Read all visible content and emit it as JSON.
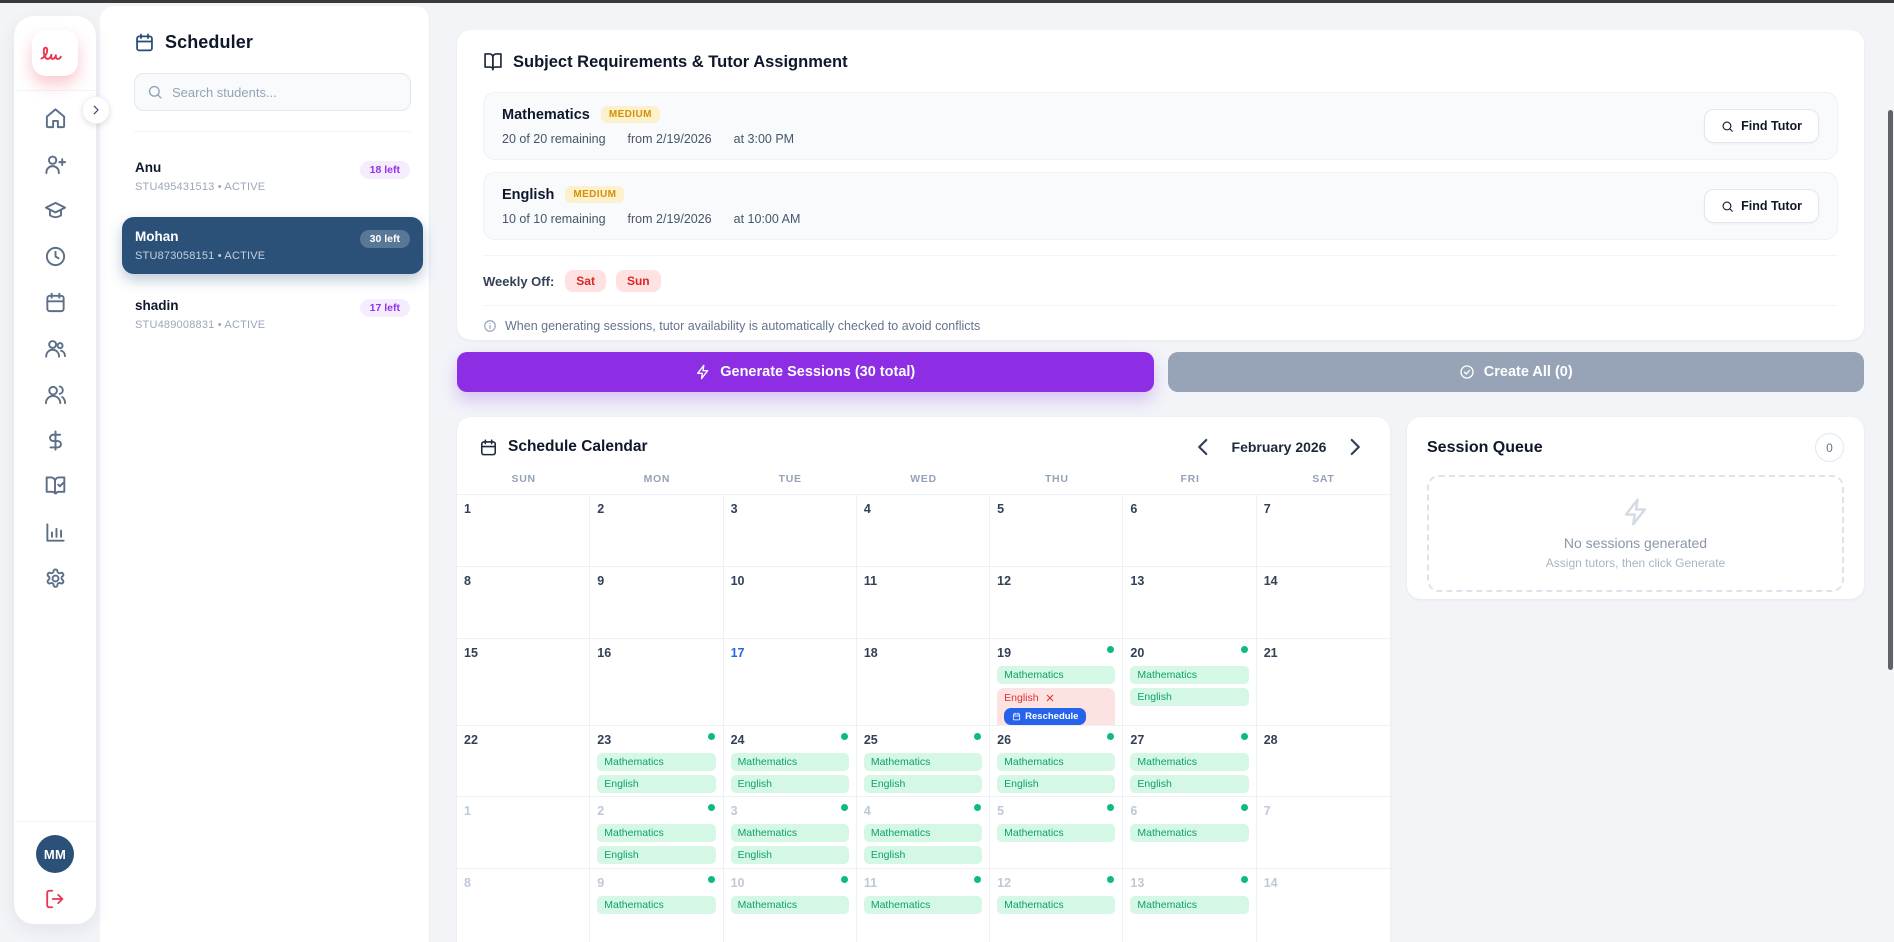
{
  "sidebar": {
    "nav_items": [
      {
        "icon": "home"
      },
      {
        "icon": "user-plus"
      },
      {
        "icon": "graduation-cap"
      },
      {
        "icon": "clock"
      },
      {
        "icon": "calendar"
      },
      {
        "icon": "users"
      },
      {
        "icon": "users-round"
      },
      {
        "icon": "dollar-sign"
      },
      {
        "icon": "book-check"
      },
      {
        "icon": "bar-chart"
      },
      {
        "icon": "settings"
      }
    ],
    "avatar_initials": "MM"
  },
  "scheduler_panel": {
    "title": "Scheduler",
    "search_placeholder": "Search students...",
    "students": [
      {
        "name": "Anu",
        "meta": "STU495431513 • ACTIVE",
        "badge": "18 left",
        "selected": false
      },
      {
        "name": "Mohan",
        "meta": "STU873058151 • ACTIVE",
        "badge": "30 left",
        "selected": true
      },
      {
        "name": "shadin",
        "meta": "STU489008831 • ACTIVE",
        "badge": "17 left",
        "selected": false
      }
    ]
  },
  "requirements": {
    "title": "Subject Requirements & Tutor Assignment",
    "subjects": [
      {
        "name": "Mathematics",
        "priority": "MEDIUM",
        "remaining": "20 of 20 remaining",
        "from": "from 2/19/2026",
        "time": "at 3:00 PM",
        "action": "Find Tutor"
      },
      {
        "name": "English",
        "priority": "MEDIUM",
        "remaining": "10 of 10 remaining",
        "from": "from 2/19/2026",
        "time": "at 10:00 AM",
        "action": "Find Tutor"
      }
    ],
    "weekly_off_label": "Weekly Off:",
    "weekly_off_days": [
      "Sat",
      "Sun"
    ],
    "info_note": "When generating sessions, tutor availability is automatically checked to avoid conflicts"
  },
  "actions": {
    "generate": "Generate Sessions (30 total)",
    "create_all": "Create All (0)"
  },
  "calendar": {
    "title": "Schedule Calendar",
    "month": "February 2026",
    "day_headers": [
      "SUN",
      "MON",
      "TUE",
      "WED",
      "THU",
      "FRI",
      "SAT"
    ],
    "weeks": [
      {
        "muted": false,
        "days": [
          {
            "n": "1"
          },
          {
            "n": "2"
          },
          {
            "n": "3"
          },
          {
            "n": "4"
          },
          {
            "n": "5"
          },
          {
            "n": "6"
          },
          {
            "n": "7"
          }
        ]
      },
      {
        "muted": false,
        "days": [
          {
            "n": "8"
          },
          {
            "n": "9"
          },
          {
            "n": "10"
          },
          {
            "n": "11"
          },
          {
            "n": "12"
          },
          {
            "n": "13"
          },
          {
            "n": "14"
          }
        ]
      },
      {
        "muted": false,
        "days": [
          {
            "n": "15"
          },
          {
            "n": "16"
          },
          {
            "n": "17",
            "today": true
          },
          {
            "n": "18"
          },
          {
            "n": "19",
            "dot": true,
            "events": [
              {
                "label": "Mathematics",
                "kind": "ok"
              },
              {
                "label": "English",
                "kind": "cancelled",
                "action": "Reschedule"
              }
            ]
          },
          {
            "n": "20",
            "dot": true,
            "events": [
              {
                "label": "Mathematics",
                "kind": "ok"
              },
              {
                "label": "English",
                "kind": "ok"
              }
            ]
          },
          {
            "n": "21"
          }
        ]
      },
      {
        "muted": false,
        "days": [
          {
            "n": "22"
          },
          {
            "n": "23",
            "dot": true,
            "events": [
              {
                "label": "Mathematics",
                "kind": "ok"
              },
              {
                "label": "English",
                "kind": "ok"
              }
            ]
          },
          {
            "n": "24",
            "dot": true,
            "events": [
              {
                "label": "Mathematics",
                "kind": "ok"
              },
              {
                "label": "English",
                "kind": "ok"
              }
            ]
          },
          {
            "n": "25",
            "dot": true,
            "events": [
              {
                "label": "Mathematics",
                "kind": "ok"
              },
              {
                "label": "English",
                "kind": "ok"
              }
            ]
          },
          {
            "n": "26",
            "dot": true,
            "events": [
              {
                "label": "Mathematics",
                "kind": "ok"
              },
              {
                "label": "English",
                "kind": "ok"
              }
            ]
          },
          {
            "n": "27",
            "dot": true,
            "events": [
              {
                "label": "Mathematics",
                "kind": "ok"
              },
              {
                "label": "English",
                "kind": "ok"
              }
            ]
          },
          {
            "n": "28"
          }
        ]
      },
      {
        "muted": true,
        "days": [
          {
            "n": "1"
          },
          {
            "n": "2",
            "dot": true,
            "events": [
              {
                "label": "Mathematics",
                "kind": "ok"
              },
              {
                "label": "English",
                "kind": "ok"
              }
            ]
          },
          {
            "n": "3",
            "dot": true,
            "events": [
              {
                "label": "Mathematics",
                "kind": "ok"
              },
              {
                "label": "English",
                "kind": "ok"
              }
            ]
          },
          {
            "n": "4",
            "dot": true,
            "events": [
              {
                "label": "Mathematics",
                "kind": "ok"
              },
              {
                "label": "English",
                "kind": "ok"
              }
            ]
          },
          {
            "n": "5",
            "dot": true,
            "events": [
              {
                "label": "Mathematics",
                "kind": "ok"
              }
            ]
          },
          {
            "n": "6",
            "dot": true,
            "events": [
              {
                "label": "Mathematics",
                "kind": "ok"
              }
            ]
          },
          {
            "n": "7"
          }
        ]
      },
      {
        "muted": true,
        "days": [
          {
            "n": "8"
          },
          {
            "n": "9",
            "dot": true,
            "events": [
              {
                "label": "Mathematics",
                "kind": "ok"
              }
            ]
          },
          {
            "n": "10",
            "dot": true,
            "events": [
              {
                "label": "Mathematics",
                "kind": "ok"
              }
            ]
          },
          {
            "n": "11",
            "dot": true,
            "events": [
              {
                "label": "Mathematics",
                "kind": "ok"
              }
            ]
          },
          {
            "n": "12",
            "dot": true,
            "events": [
              {
                "label": "Mathematics",
                "kind": "ok"
              }
            ]
          },
          {
            "n": "13",
            "dot": true,
            "events": [
              {
                "label": "Mathematics",
                "kind": "ok"
              }
            ]
          },
          {
            "n": "14"
          }
        ]
      }
    ]
  },
  "session_queue": {
    "title": "Session Queue",
    "count": "0",
    "empty_title": "No sessions generated",
    "empty_sub": "Assign tutors, then click Generate"
  },
  "colors": {
    "accent_purple": "#8d2de4",
    "brand_red": "#e8364f",
    "selected_navy": "#2b5179",
    "event_green_bg": "#d5f7e5",
    "event_green_text": "#0da26c",
    "cancel_red": "#e03131",
    "reschedule_blue": "#2563eb",
    "priority_amber": "#d49106",
    "session_dot_green": "#10b981"
  }
}
